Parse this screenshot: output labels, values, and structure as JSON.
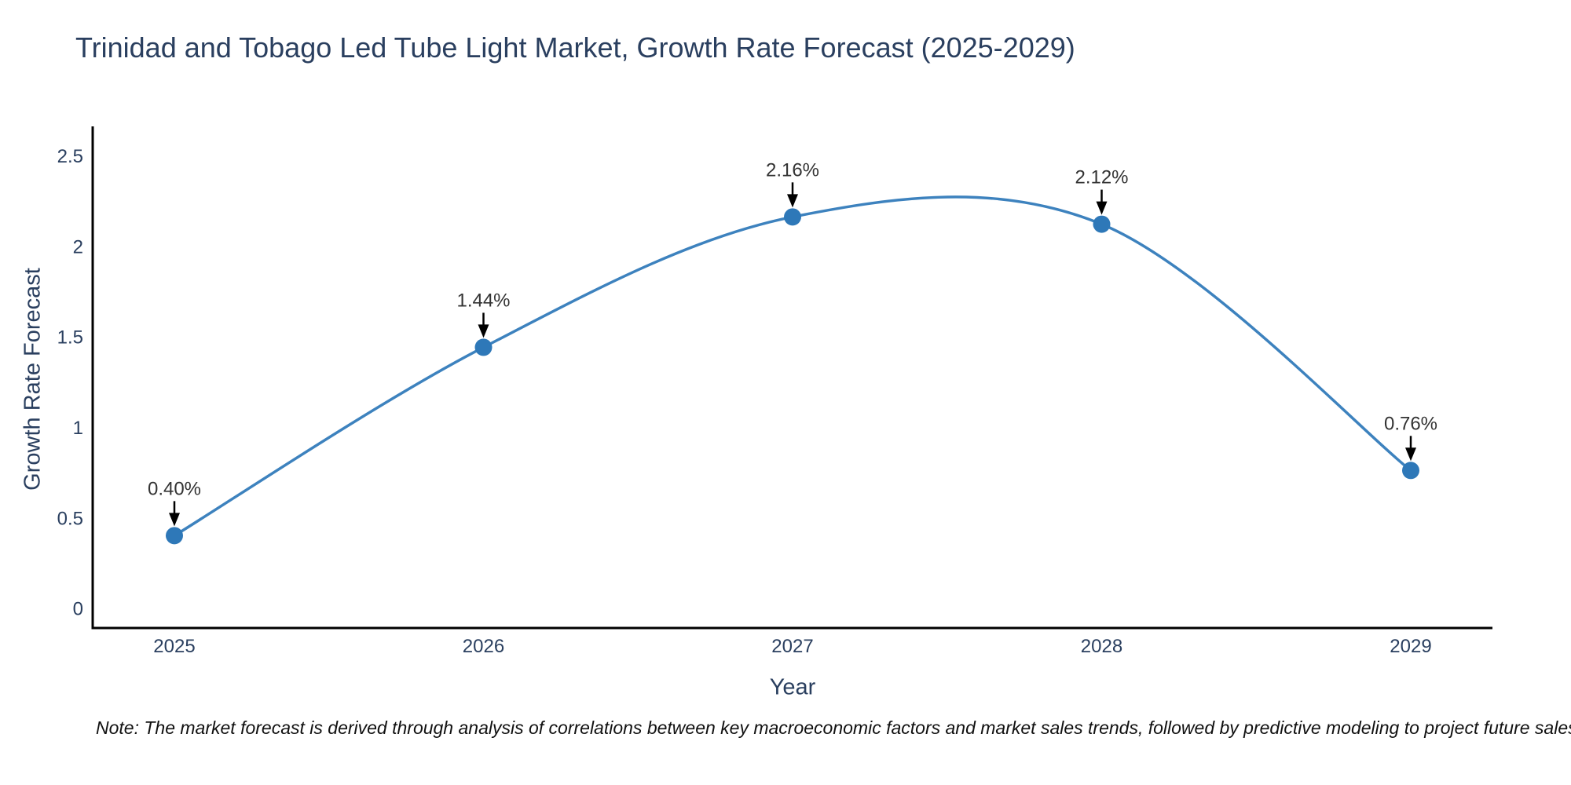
{
  "title": "Trinidad and Tobago Led Tube Light Market, Growth Rate Forecast (2025-2029)",
  "note": "Note: The market forecast is derived through analysis of correlations between key macroeconomic factors and market sales trends, followed by predictive modeling to project future sales",
  "colors": {
    "title_text": "#2a3f5f",
    "axis_text": "#2a3f5f",
    "axis_line": "#000000",
    "line": "#3d82be",
    "marker": "#2e78b8",
    "annotation_text": "#333333",
    "arrow": "#000000",
    "note_text": "#111111",
    "background": "#ffffff"
  },
  "chart_data": {
    "type": "line",
    "title": "Trinidad and Tobago Led Tube Light Market, Growth Rate Forecast (2025-2029)",
    "xlabel": "Year",
    "ylabel": "Growth Rate Forecast",
    "categories": [
      "2025",
      "2026",
      "2027",
      "2028",
      "2029"
    ],
    "values": [
      0.4,
      1.44,
      2.16,
      2.12,
      0.76
    ],
    "point_labels": [
      "0.40%",
      "1.44%",
      "2.16%",
      "2.12%",
      "0.76%"
    ],
    "y_ticks": [
      "0",
      "0.5",
      "1",
      "1.5",
      "2",
      "2.5"
    ],
    "ylim": [
      -0.11,
      2.66
    ],
    "line_shape": "spline",
    "grid": false,
    "legend": false,
    "annotations_arrow": "down-to-point"
  }
}
